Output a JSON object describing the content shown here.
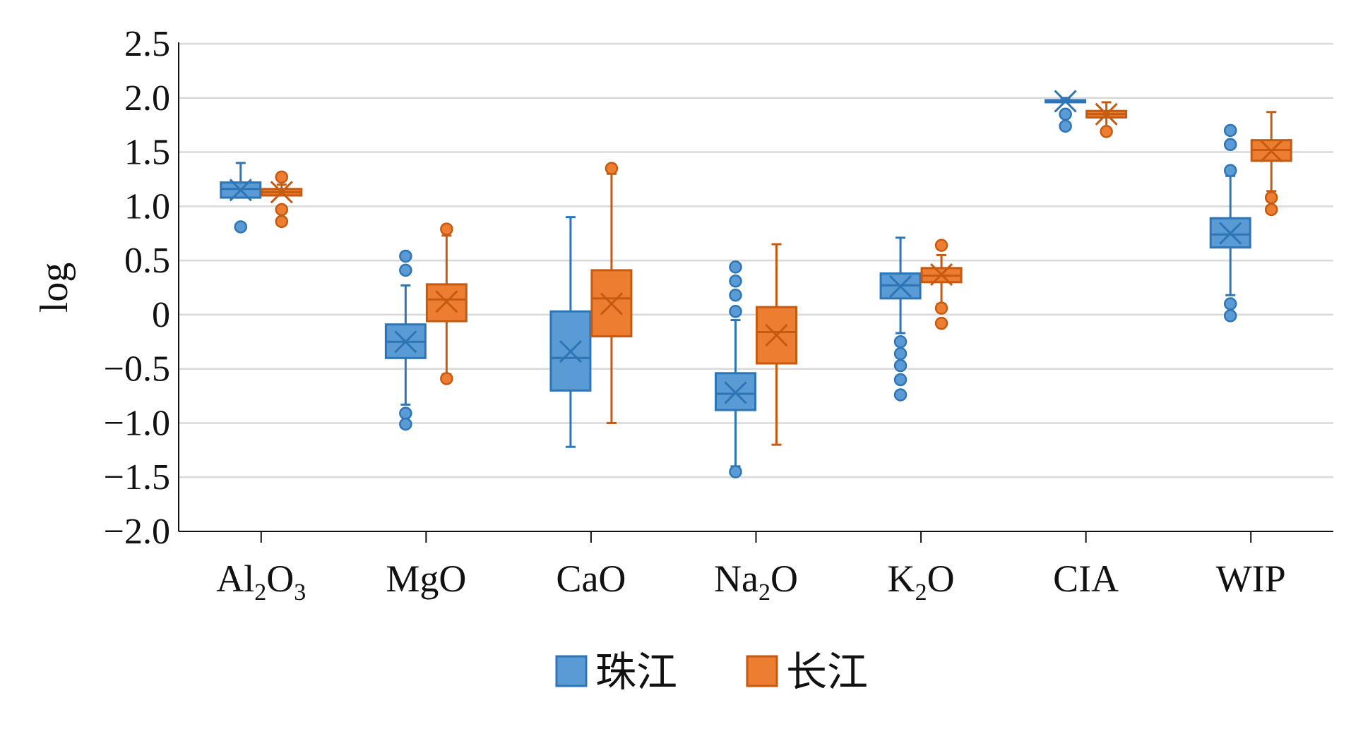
{
  "chart_data": {
    "type": "box",
    "ylabel": "log",
    "xlabel": "",
    "ylim": [
      -2.0,
      2.5
    ],
    "yticks": [
      2.5,
      2.0,
      1.5,
      1.0,
      0.5,
      0,
      -0.5,
      -1.0,
      -1.5,
      -2.0
    ],
    "ytick_labels": [
      "2.5",
      "2.0",
      "1.5",
      "1.0",
      "0.5",
      "0",
      "−0.5",
      "−1.0",
      "−1.5",
      "−2.0"
    ],
    "grid": true,
    "legend_position": "bottom-center",
    "categories": [
      {
        "base": "Al",
        "sub1": "2",
        "mid": "O",
        "sub2": "3"
      },
      {
        "base": "MgO",
        "sub1": "",
        "mid": "",
        "sub2": ""
      },
      {
        "base": "CaO",
        "sub1": "",
        "mid": "",
        "sub2": ""
      },
      {
        "base": "Na",
        "sub1": "2",
        "mid": "O",
        "sub2": ""
      },
      {
        "base": "K",
        "sub1": "2",
        "mid": "O",
        "sub2": ""
      },
      {
        "base": "CIA",
        "sub1": "",
        "mid": "",
        "sub2": ""
      },
      {
        "base": "WIP",
        "sub1": "",
        "mid": "",
        "sub2": ""
      }
    ],
    "series": [
      {
        "name": "珠江",
        "color": "#5B9BD5",
        "stroke": "#2E75B6",
        "boxes": [
          {
            "min": 1.08,
            "q1": 1.08,
            "median": 1.16,
            "q3": 1.22,
            "max": 1.4,
            "mean": 1.15,
            "outliers": [
              0.81
            ]
          },
          {
            "min": -0.83,
            "q1": -0.4,
            "median": -0.25,
            "q3": -0.09,
            "max": 0.27,
            "mean": -0.25,
            "outliers": [
              0.54,
              0.41,
              -0.91,
              -1.01
            ]
          },
          {
            "min": -1.22,
            "q1": -0.7,
            "median": -0.4,
            "q3": 0.03,
            "max": 0.9,
            "mean": -0.34,
            "outliers": []
          },
          {
            "min": -1.4,
            "q1": -0.88,
            "median": -0.73,
            "q3": -0.54,
            "max": -0.05,
            "mean": -0.72,
            "outliers": [
              0.44,
              0.31,
              0.18,
              0.03,
              -1.45
            ]
          },
          {
            "min": -0.17,
            "q1": 0.15,
            "median": 0.27,
            "q3": 0.38,
            "max": 0.71,
            "mean": 0.26,
            "outliers": [
              -0.25,
              -0.36,
              -0.47,
              -0.6,
              -0.74
            ]
          },
          {
            "min": 1.96,
            "q1": 1.96,
            "median": 1.97,
            "q3": 1.98,
            "max": 2.0,
            "mean": 1.97,
            "outliers": [
              1.85,
              1.74
            ]
          },
          {
            "min": 0.18,
            "q1": 0.62,
            "median": 0.74,
            "q3": 0.89,
            "max": 1.28,
            "mean": 0.75,
            "outliers": [
              1.7,
              1.57,
              1.33,
              0.1,
              -0.01
            ]
          }
        ]
      },
      {
        "name": "长江",
        "color": "#ED7D31",
        "stroke": "#C55A11",
        "boxes": [
          {
            "min": 1.1,
            "q1": 1.1,
            "median": 1.13,
            "q3": 1.16,
            "max": 1.2,
            "mean": 1.13,
            "outliers": [
              1.27,
              0.97,
              0.86
            ]
          },
          {
            "min": -0.55,
            "q1": -0.06,
            "median": 0.14,
            "q3": 0.28,
            "max": 0.73,
            "mean": 0.12,
            "outliers": [
              0.79,
              -0.59
            ]
          },
          {
            "min": -1.0,
            "q1": -0.2,
            "median": 0.15,
            "q3": 0.41,
            "max": 1.3,
            "mean": 0.1,
            "outliers": [
              1.35
            ]
          },
          {
            "min": -1.2,
            "q1": -0.45,
            "median": -0.16,
            "q3": 0.07,
            "max": 0.65,
            "mean": -0.19,
            "outliers": []
          },
          {
            "min": 0.1,
            "q1": 0.3,
            "median": 0.36,
            "q3": 0.43,
            "max": 0.55,
            "mean": 0.37,
            "outliers": [
              0.64,
              0.06,
              -0.08
            ]
          },
          {
            "min": 1.72,
            "q1": 1.82,
            "median": 1.85,
            "q3": 1.88,
            "max": 1.96,
            "mean": 1.85,
            "outliers": [
              1.69
            ]
          },
          {
            "min": 1.14,
            "q1": 1.42,
            "median": 1.52,
            "q3": 1.61,
            "max": 1.87,
            "mean": 1.51,
            "outliers": [
              1.08,
              0.97
            ]
          }
        ]
      }
    ]
  }
}
